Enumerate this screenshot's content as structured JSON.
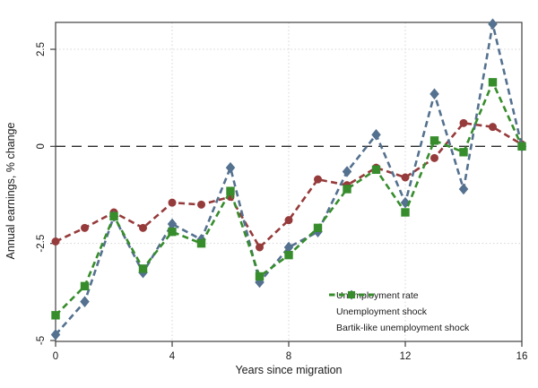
{
  "figure": {
    "background": "#ffffff",
    "axis_color": "#3f3f3f",
    "grid_color": "#d4d4d4",
    "text_color": "#1a1a1a",
    "zero_line_color": "#2b2b2b"
  },
  "chart_data": {
    "type": "line",
    "title": "",
    "xlabel": "Years since migration",
    "ylabel": "Annual earnings, % change",
    "x": [
      0,
      1,
      2,
      3,
      4,
      5,
      6,
      7,
      8,
      9,
      10,
      11,
      12,
      13,
      14,
      15,
      16
    ],
    "xlim": [
      0,
      16
    ],
    "ylim": [
      -5,
      3.2
    ],
    "x_ticks": [
      0,
      4,
      8,
      12,
      16
    ],
    "x_tick_labels": [
      "0",
      "4",
      "8",
      "12",
      "16"
    ],
    "y_ticks": [
      -5,
      -2.5,
      0,
      2.5
    ],
    "y_tick_labels": [
      "-5",
      "-2.5",
      "0",
      "2.5"
    ],
    "grid": "dotted",
    "zero_reference_line": 0,
    "legend_position": "inside lower right",
    "series": [
      {
        "name": "Unemployment rate",
        "color": "#963B3B",
        "marker": "circle",
        "line_style": "dashed",
        "values": [
          -2.45,
          -2.1,
          -1.7,
          -2.1,
          -1.45,
          -1.5,
          -1.3,
          -2.6,
          -1.9,
          -0.85,
          -1.0,
          -0.55,
          -0.8,
          -0.3,
          0.6,
          0.5,
          0.05
        ]
      },
      {
        "name": "Unemployment shock",
        "color": "#54718F",
        "marker": "diamond",
        "line_style": "dashed",
        "values": [
          -4.85,
          -4.0,
          -1.8,
          -3.25,
          -2.0,
          -2.4,
          -0.55,
          -3.5,
          -2.6,
          -2.2,
          -0.65,
          0.3,
          -1.45,
          1.35,
          -1.1,
          3.15,
          0.0
        ]
      },
      {
        "name": "Bartik-like unemployment shock",
        "color": "#378D2C",
        "marker": "square",
        "line_style": "dashed",
        "values": [
          -4.35,
          -3.6,
          -1.8,
          -3.15,
          -2.2,
          -2.5,
          -1.15,
          -3.35,
          -2.8,
          -2.1,
          -1.1,
          -0.6,
          -1.7,
          0.15,
          -0.15,
          1.65,
          0.0
        ]
      }
    ]
  }
}
